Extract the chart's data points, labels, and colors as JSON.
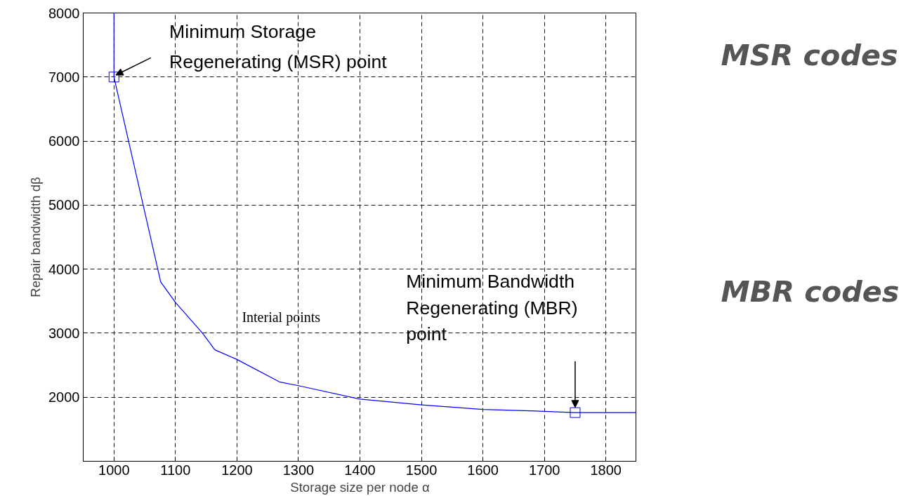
{
  "chart_data": {
    "type": "line",
    "xlabel": "Storage size per node α",
    "ylabel": "Repair bandwidth dβ",
    "xlim": [
      950,
      1850
    ],
    "ylim": [
      1000,
      8000
    ],
    "xticks": [
      1000,
      1100,
      1200,
      1300,
      1400,
      1500,
      1600,
      1700,
      1800
    ],
    "yticks": [
      2000,
      3000,
      4000,
      5000,
      6000,
      7000,
      8000
    ],
    "grid": true,
    "series": [
      {
        "color": "#0000ff",
        "line_style": "solid",
        "marker": "none",
        "x": [
          1000,
          1000,
          1076,
          1100,
          1144,
          1164,
          1200,
          1269,
          1300,
          1400,
          1500,
          1600,
          1700,
          1750,
          1850
        ],
        "values": [
          8000,
          7000,
          3800,
          3480,
          3000,
          2740,
          2590,
          2240,
          2180,
          1970,
          1880,
          1810,
          1780,
          1760,
          1760
        ]
      },
      {
        "type": "scatter",
        "color": "#0000ff",
        "marker": "square",
        "x": [
          1000,
          1750
        ],
        "values": [
          7000,
          1760
        ]
      }
    ],
    "annotations": [
      {
        "text": "Minimum Storage Regenerating (MSR) point",
        "x": 1000,
        "y": 7000
      },
      {
        "text": "Minimum Bandwidth Regenerating (MBR) point",
        "x": 1750,
        "y": 1760
      },
      "Interial points",
      "MSR codes",
      "MBR codes"
    ]
  }
}
